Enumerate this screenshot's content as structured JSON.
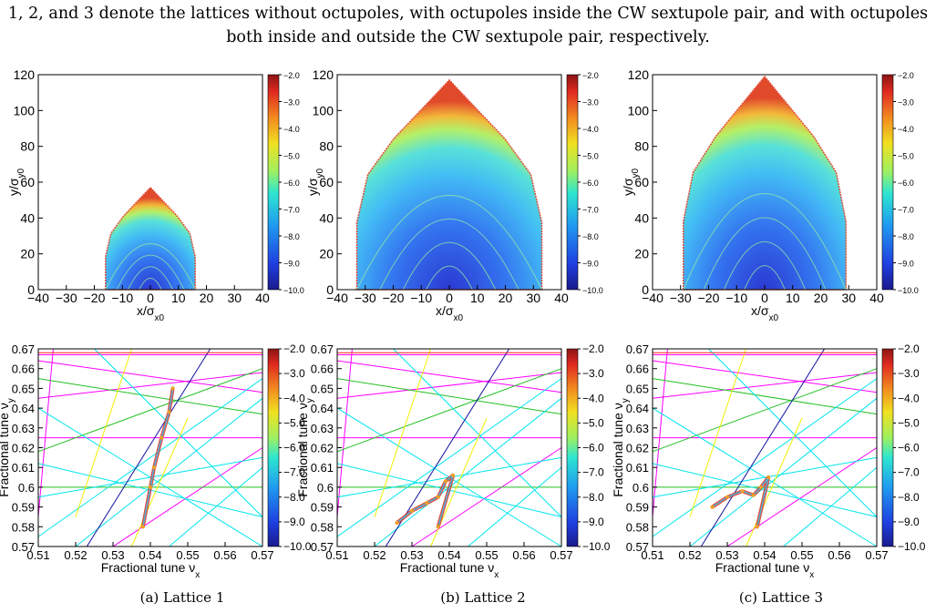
{
  "caption": {
    "line1": "1, 2, and 3 denote the lattices without octupoles, with octupoles inside the CW sextupole pair, and with octupoles",
    "line2": "both inside and outside the CW sextupole pair, respectively."
  },
  "colors": {
    "resonance_magenta": "#ff00ff",
    "resonance_cyan": "#00e5ee",
    "resonance_green": "#22c022",
    "resonance_yellow": "#f0f000",
    "resonance_blue": "#1010a0",
    "resonance_red": "#ff2020"
  },
  "chart_data": [
    {
      "type": "heatmap",
      "panel": "a-top",
      "xlabel": "x/σx0",
      "ylabel": "y/σy0",
      "xlim": [
        -40,
        40
      ],
      "ylim": [
        0,
        120
      ],
      "xticks": [
        "−40",
        "−30",
        "−20",
        "−10",
        "0",
        "10",
        "20",
        "30",
        "40"
      ],
      "yticks": [
        "0",
        "20",
        "40",
        "60",
        "80",
        "100",
        "120"
      ],
      "colorbar": {
        "min": -10.0,
        "max": -2.0,
        "ticks": [
          "−2.0",
          "−3.0",
          "−4.0",
          "−5.0",
          "−6.0",
          "−7.0",
          "−8.0",
          "−9.0",
          "−10.0"
        ]
      },
      "aperture_half_width": 16,
      "aperture_peak": 57
    },
    {
      "type": "heatmap",
      "panel": "b-top",
      "xlabel": "x/σx0",
      "ylabel": "y/σy0",
      "xlim": [
        -40,
        40
      ],
      "ylim": [
        0,
        120
      ],
      "xticks": [
        "−40",
        "−30",
        "−20",
        "−10",
        "0",
        "10",
        "20",
        "30",
        "40"
      ],
      "yticks": [
        "0",
        "20",
        "40",
        "60",
        "80",
        "100",
        "120"
      ],
      "colorbar": {
        "min": -10.0,
        "max": -2.0,
        "ticks": [
          "−2.0",
          "−3.0",
          "−4.0",
          "−5.0",
          "−6.0",
          "−7.0",
          "−8.0",
          "−9.0",
          "−10.0"
        ]
      },
      "aperture_half_width": 33,
      "aperture_peak": 117
    },
    {
      "type": "heatmap",
      "panel": "c-top",
      "xlabel": "x/σx0",
      "ylabel": "y/σy0",
      "xlim": [
        -40,
        40
      ],
      "ylim": [
        0,
        120
      ],
      "xticks": [
        "−40",
        "−30",
        "−20",
        "−10",
        "0",
        "10",
        "20",
        "30",
        "40"
      ],
      "yticks": [
        "0",
        "20",
        "40",
        "60",
        "80",
        "100",
        "120"
      ],
      "colorbar": {
        "min": -10.0,
        "max": -2.0,
        "ticks": [
          "−2.0",
          "−3.0",
          "−4.0",
          "−5.0",
          "−6.0",
          "−7.0",
          "−8.0",
          "−9.0",
          "−10.0"
        ]
      },
      "aperture_half_width": 29,
      "aperture_peak": 119
    },
    {
      "type": "scatter",
      "panel": "a-bottom",
      "xlabel": "Fractional tune νx",
      "ylabel": "Fractional tune νy",
      "xlim": [
        0.51,
        0.57
      ],
      "ylim": [
        0.57,
        0.67
      ],
      "xticks": [
        "0.51",
        "0.52",
        "0.53",
        "0.54",
        "0.55",
        "0.56",
        "0.57"
      ],
      "yticks": [
        "0.57",
        "0.58",
        "0.59",
        "0.6",
        "0.61",
        "0.62",
        "0.63",
        "0.64",
        "0.65",
        "0.66",
        "0.67"
      ],
      "colorbar": {
        "min": -10.0,
        "max": -2.0,
        "ticks": [
          "−2.0",
          "−3.0",
          "−4.0",
          "−5.0",
          "−6.0",
          "−7.0",
          "−8.0",
          "−9.0",
          "−10.0"
        ]
      },
      "footprint": [
        [
          0.538,
          0.58
        ],
        [
          0.54,
          0.6
        ],
        [
          0.541,
          0.61
        ],
        [
          0.543,
          0.625
        ],
        [
          0.545,
          0.638
        ],
        [
          0.546,
          0.65
        ]
      ]
    },
    {
      "type": "scatter",
      "panel": "b-bottom",
      "xlabel": "Fractional tune νx",
      "ylabel": "Fractional tune νy",
      "xlim": [
        0.51,
        0.57
      ],
      "ylim": [
        0.57,
        0.67
      ],
      "xticks": [
        "0.51",
        "0.52",
        "0.53",
        "0.54",
        "0.55",
        "0.56",
        "0.57"
      ],
      "yticks": [
        "0.57",
        "0.58",
        "0.59",
        "0.6",
        "0.61",
        "0.62",
        "0.63",
        "0.64",
        "0.65",
        "0.66",
        "0.67"
      ],
      "colorbar": {
        "min": -10.0,
        "max": -2.0,
        "ticks": [
          "−2.0",
          "−3.0",
          "−4.0",
          "−5.0",
          "−6.0",
          "−7.0",
          "−8.0",
          "−9.0",
          "−10.0"
        ]
      },
      "footprint": [
        [
          0.526,
          0.582
        ],
        [
          0.53,
          0.588
        ],
        [
          0.534,
          0.592
        ],
        [
          0.537,
          0.595
        ],
        [
          0.539,
          0.603
        ],
        [
          0.541,
          0.606
        ],
        [
          0.537,
          0.58
        ]
      ]
    },
    {
      "type": "scatter",
      "panel": "c-bottom",
      "xlabel": "Fractional tune νx",
      "ylabel": "Fractional tune νy",
      "xlim": [
        0.51,
        0.57
      ],
      "ylim": [
        0.57,
        0.67
      ],
      "xticks": [
        "0.51",
        "0.52",
        "0.53",
        "0.54",
        "0.55",
        "0.56",
        "0.57"
      ],
      "yticks": [
        "0.57",
        "0.58",
        "0.59",
        "0.6",
        "0.61",
        "0.62",
        "0.63",
        "0.64",
        "0.65",
        "0.66",
        "0.67"
      ],
      "colorbar": {
        "min": -10.0,
        "max": -2.0,
        "ticks": [
          "−2.0",
          "−3.0",
          "−4.0",
          "−5.0",
          "−6.0",
          "−7.0",
          "−8.0",
          "−9.0",
          "−10.0"
        ]
      },
      "footprint": [
        [
          0.526,
          0.59
        ],
        [
          0.53,
          0.595
        ],
        [
          0.534,
          0.598
        ],
        [
          0.537,
          0.596
        ],
        [
          0.539,
          0.6
        ],
        [
          0.541,
          0.605
        ],
        [
          0.538,
          0.58
        ]
      ]
    }
  ],
  "subcaptions": [
    "(a) Lattice 1",
    "(b) Lattice 2",
    "(c) Lattice 3"
  ]
}
